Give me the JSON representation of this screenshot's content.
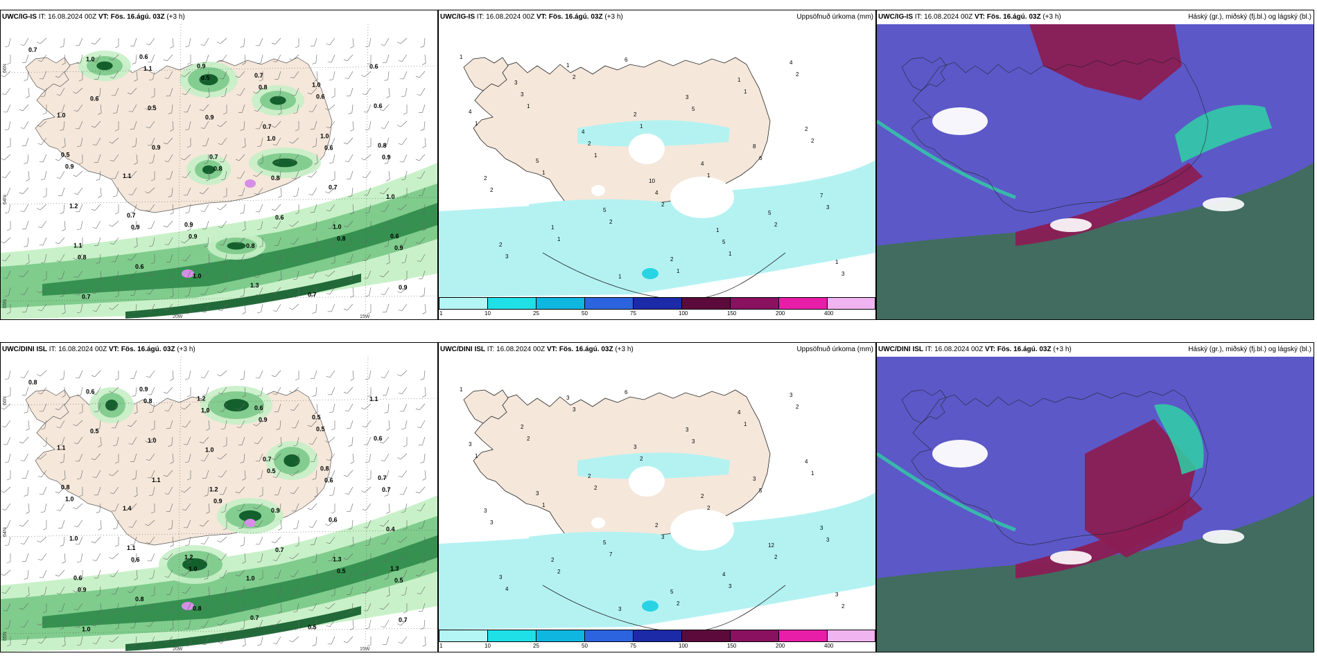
{
  "colors": {
    "land": "#f5e7da",
    "water": "#ffffff",
    "precip_light": "#b4f2f2",
    "precip_med": "#28d4e4",
    "green_1": "#c6f0c6",
    "green_2": "#7cc98a",
    "green_3": "#2e8b4a",
    "green_4": "#0e5a28",
    "purple": "#d78ee8",
    "cloud_high": "#8a1d54",
    "cloud_mid": "#5c58c8",
    "cloud_low": "#3f6e5a",
    "cloud_teal": "#2fd1a4"
  },
  "rows": [
    {
      "model": "UWC/IG-IS",
      "panels": [
        {
          "model": "UWC/IG-IS",
          "it_label": "IT:",
          "it_value": "16.08.2024 00Z",
          "vt_label": "VT:",
          "vt_value": "Fös. 16.ágú. 03Z",
          "lead": "(+3 h)",
          "right_title": "",
          "lon_labels": [
            "20W",
            "15W"
          ],
          "lat_labels": [
            "66N",
            "64N",
            "65N"
          ],
          "values": [
            "0.7",
            "0.6",
            "0.9",
            "0.8",
            "0.6",
            "0.8",
            "0.9",
            "1.0",
            "0.5",
            "0.7",
            "0.8",
            "1.0",
            "0.9",
            "0.7",
            "1.1",
            "0.9",
            "1.0",
            "0.7",
            "0.6",
            "0.8",
            "0.6",
            "0.5",
            "0.7",
            "0.6",
            "1.0",
            "1.1",
            "0.6",
            "0.9",
            "0.8",
            "1.0",
            "0.9",
            "1.2",
            "0.9",
            "1.0",
            "0.7",
            "0.6",
            "0.8",
            "0.9",
            "0.7",
            "0.9",
            "1.3",
            "1.0",
            "0.6",
            "0.5",
            "1.1",
            "0.9",
            "0.8",
            "0.7",
            "0.6",
            "1.0"
          ]
        },
        {
          "model": "UWC/IG-IS",
          "it_label": "IT:",
          "it_value": "16.08.2024 00Z",
          "vt_label": "VT:",
          "vt_value": "Fös. 16.ágú. 03Z",
          "lead": "(+3 h)",
          "right_title": "Uppsöfnuð úrkoma (mm)",
          "values": [
            "1",
            "1",
            "1",
            "2",
            "1",
            "2",
            "1",
            "1",
            "2",
            "1",
            "1",
            "2",
            "2",
            "1",
            "6",
            "5",
            "6",
            "3",
            "3",
            "2",
            "1",
            "1",
            "2",
            "3",
            "3",
            "2",
            "4",
            "5",
            "4",
            "4",
            "5",
            "5",
            "2",
            "1",
            "2",
            "2",
            "1",
            "1",
            "3",
            "8",
            "7",
            "2",
            "1",
            "2",
            "4",
            "5",
            "1",
            "3",
            "4",
            "10",
            "1"
          ]
        },
        {
          "model": "UWC/IG-IS",
          "it_label": "IT:",
          "it_value": "16.08.2024 00Z",
          "vt_label": "VT:",
          "vt_value": "Fös. 16.ágú. 03Z",
          "lead": "(+3 h)",
          "right_title": "Háský (gr.), miðský (fj.bl.) og lágský (bl.)"
        }
      ]
    },
    {
      "model": "UWC/DINI ISL",
      "panels": [
        {
          "model": "UWC/DINI ISL",
          "it_label": "IT:",
          "it_value": "16.08.2024 00Z",
          "vt_label": "VT:",
          "vt_value": "Fös. 16.ágú. 03Z",
          "lead": "(+3 h)",
          "right_title": "",
          "lon_labels": [
            "20W",
            "15W"
          ],
          "lat_labels": [
            "66N",
            "64N",
            "65N"
          ],
          "values": [
            "0.8",
            "0.5",
            "1.1",
            "0.9",
            "0.7",
            "0.5",
            "0.7",
            "0.6",
            "1.0",
            "1.2",
            "0.9",
            "1.3",
            "0.5",
            "1.0",
            "0.8",
            "1.0",
            "0.5",
            "0.6",
            "1.3",
            "0.9",
            "0.9",
            "1.0",
            "0.7",
            "0.6",
            "0.4",
            "0.6",
            "0.8",
            "1.2",
            "0.9",
            "0.8",
            "0.7",
            "1.0",
            "0.6",
            "0.8",
            "0.6",
            "0.5",
            "0.7",
            "1.0",
            "1.1",
            "1.0",
            "0.7",
            "0.5",
            "0.6",
            "0.8",
            "1.4",
            "1.2",
            "1.0",
            "0.5",
            "1.1",
            "1.1"
          ]
        },
        {
          "model": "UWC/DINI ISL",
          "it_label": "IT:",
          "it_value": "16.08.2024 00Z",
          "vt_label": "VT:",
          "vt_value": "Fös. 16.ágú. 03Z",
          "lead": "(+3 h)",
          "right_title": "Uppsöfnuð úrkoma (mm)",
          "values": [
            "1",
            "2",
            "2",
            "3",
            "3",
            "2",
            "1",
            "1",
            "7",
            "2",
            "1",
            "1",
            "3",
            "2",
            "6",
            "3",
            "5",
            "3",
            "4",
            "3",
            "2",
            "2",
            "2",
            "2",
            "2",
            "2",
            "2",
            "4",
            "3",
            "3",
            "3",
            "5",
            "5",
            "4",
            "4",
            "3",
            "2",
            "3",
            "3",
            "3",
            "3",
            "3",
            "3",
            "3",
            "2",
            "12",
            "3"
          ]
        },
        {
          "model": "UWC/DINI ISL",
          "it_label": "IT:",
          "it_value": "16.08.2024 00Z",
          "vt_label": "VT:",
          "vt_value": "Fös. 16.ágú. 03Z",
          "lead": "(+3 h)",
          "right_title": "Háský (gr.), miðský (fj.bl.) og lágský (bl.)"
        }
      ]
    }
  ],
  "colorbar": {
    "ticks": [
      "1",
      "10",
      "25",
      "50",
      "75",
      "100",
      "150",
      "200",
      "400"
    ],
    "colors": [
      "#b4f5f5",
      "#1fe0e6",
      "#0fb6e0",
      "#2c64e0",
      "#1c2aa8",
      "#5c0a3c",
      "#8a1060",
      "#e81ea8",
      "#f0b4f0"
    ]
  }
}
